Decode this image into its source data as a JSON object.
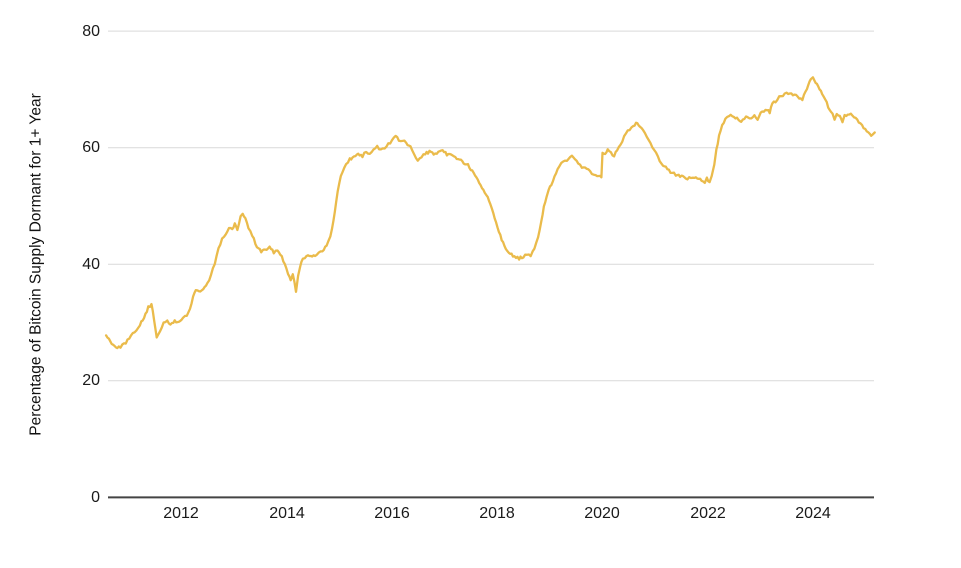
{
  "chart": {
    "y_axis_title": "Percentage of Bitcoin Supply Dormant for 1+ Year",
    "y_ticks": [
      "80",
      "60",
      "40",
      "20",
      "0"
    ],
    "x_ticks": [
      "2012",
      "2014",
      "2016",
      "2018",
      "2020",
      "2022",
      "2024"
    ]
  },
  "colors": {
    "line": "#EABB4B",
    "grid": "#D9D9D9",
    "zero_axis": "#444444",
    "tick_text": "#1a1a1a"
  },
  "chart_data": {
    "type": "line",
    "title": "",
    "xlabel": "",
    "ylabel": "Percentage of Bitcoin Supply Dormant for 1+ Year",
    "x_range": [
      2010.55,
      2025.2
    ],
    "ylim": [
      0,
      80
    ],
    "y_tick_values": [
      0,
      20,
      40,
      60,
      80
    ],
    "x_tick_years": [
      2012,
      2014,
      2016,
      2018,
      2020,
      2022,
      2024
    ],
    "grid": "horizontal-only",
    "legend": "none",
    "series": [
      {
        "name": "Percentage of Bitcoin Supply Dormant for 1+ Year",
        "points": [
          [
            2010.58,
            27.8
          ],
          [
            2010.66,
            26.8
          ],
          [
            2010.74,
            26.0
          ],
          [
            2010.82,
            25.7
          ],
          [
            2010.92,
            26.3
          ],
          [
            2011.02,
            27.2
          ],
          [
            2011.12,
            28.4
          ],
          [
            2011.22,
            29.6
          ],
          [
            2011.3,
            30.8
          ],
          [
            2011.38,
            32.6
          ],
          [
            2011.44,
            33.0
          ],
          [
            2011.49,
            30.5
          ],
          [
            2011.54,
            27.6
          ],
          [
            2011.6,
            28.6
          ],
          [
            2011.67,
            29.8
          ],
          [
            2011.74,
            30.2
          ],
          [
            2011.8,
            29.6
          ],
          [
            2011.88,
            30.3
          ],
          [
            2011.96,
            30.0
          ],
          [
            2012.04,
            30.8
          ],
          [
            2012.11,
            31.3
          ],
          [
            2012.17,
            32.3
          ],
          [
            2012.23,
            34.5
          ],
          [
            2012.28,
            35.6
          ],
          [
            2012.34,
            35.2
          ],
          [
            2012.42,
            35.7
          ],
          [
            2012.5,
            36.6
          ],
          [
            2012.57,
            38.1
          ],
          [
            2012.64,
            40.2
          ],
          [
            2012.71,
            42.8
          ],
          [
            2012.78,
            44.3
          ],
          [
            2012.85,
            45.1
          ],
          [
            2012.91,
            46.3
          ],
          [
            2012.97,
            45.9
          ],
          [
            2013.02,
            46.8
          ],
          [
            2013.07,
            46.0
          ],
          [
            2013.13,
            48.2
          ],
          [
            2013.17,
            48.6
          ],
          [
            2013.22,
            47.8
          ],
          [
            2013.28,
            46.3
          ],
          [
            2013.35,
            44.9
          ],
          [
            2013.44,
            43.0
          ],
          [
            2013.52,
            42.2
          ],
          [
            2013.6,
            42.5
          ],
          [
            2013.68,
            42.8
          ],
          [
            2013.76,
            42.1
          ],
          [
            2013.83,
            42.4
          ],
          [
            2013.91,
            41.5
          ],
          [
            2013.97,
            39.9
          ],
          [
            2014.03,
            38.3
          ],
          [
            2014.08,
            37.4
          ],
          [
            2014.12,
            38.3
          ],
          [
            2014.15,
            37.2
          ],
          [
            2014.18,
            35.4
          ],
          [
            2014.22,
            38.0
          ],
          [
            2014.26,
            39.8
          ],
          [
            2014.31,
            41.0
          ],
          [
            2014.38,
            41.4
          ],
          [
            2014.46,
            41.6
          ],
          [
            2014.54,
            41.3
          ],
          [
            2014.61,
            41.8
          ],
          [
            2014.68,
            42.3
          ],
          [
            2014.76,
            43.2
          ],
          [
            2014.83,
            44.6
          ],
          [
            2014.89,
            47.5
          ],
          [
            2014.94,
            50.8
          ],
          [
            2015.0,
            54.0
          ],
          [
            2015.06,
            55.9
          ],
          [
            2015.13,
            57.1
          ],
          [
            2015.2,
            58.0
          ],
          [
            2015.28,
            58.4
          ],
          [
            2015.36,
            59.0
          ],
          [
            2015.44,
            58.6
          ],
          [
            2015.51,
            59.3
          ],
          [
            2015.58,
            58.8
          ],
          [
            2015.65,
            59.8
          ],
          [
            2015.72,
            60.1
          ],
          [
            2015.79,
            59.7
          ],
          [
            2015.86,
            60.0
          ],
          [
            2015.93,
            60.6
          ],
          [
            2016.0,
            61.2
          ],
          [
            2016.07,
            61.9
          ],
          [
            2016.13,
            61.3
          ],
          [
            2016.2,
            61.2
          ],
          [
            2016.27,
            60.8
          ],
          [
            2016.35,
            60.1
          ],
          [
            2016.42,
            58.7
          ],
          [
            2016.49,
            57.8
          ],
          [
            2016.56,
            58.4
          ],
          [
            2016.63,
            59.0
          ],
          [
            2016.71,
            59.3
          ],
          [
            2016.79,
            58.9
          ],
          [
            2016.88,
            59.1
          ],
          [
            2016.96,
            59.4
          ],
          [
            2017.04,
            58.9
          ],
          [
            2017.12,
            58.7
          ],
          [
            2017.2,
            58.4
          ],
          [
            2017.28,
            58.0
          ],
          [
            2017.36,
            57.4
          ],
          [
            2017.44,
            57.0
          ],
          [
            2017.52,
            55.9
          ],
          [
            2017.6,
            54.8
          ],
          [
            2017.68,
            53.6
          ],
          [
            2017.76,
            52.4
          ],
          [
            2017.84,
            50.9
          ],
          [
            2017.92,
            48.9
          ],
          [
            2018.0,
            46.4
          ],
          [
            2018.08,
            44.3
          ],
          [
            2018.16,
            42.8
          ],
          [
            2018.24,
            41.8
          ],
          [
            2018.32,
            41.2
          ],
          [
            2018.41,
            41.0
          ],
          [
            2018.49,
            41.3
          ],
          [
            2018.56,
            41.6
          ],
          [
            2018.63,
            41.4
          ],
          [
            2018.7,
            42.6
          ],
          [
            2018.77,
            44.6
          ],
          [
            2018.83,
            47.5
          ],
          [
            2018.88,
            49.9
          ],
          [
            2018.93,
            51.6
          ],
          [
            2018.97,
            52.8
          ],
          [
            2019.02,
            53.6
          ],
          [
            2019.08,
            54.9
          ],
          [
            2019.14,
            56.1
          ],
          [
            2019.21,
            57.3
          ],
          [
            2019.28,
            57.8
          ],
          [
            2019.35,
            58.1
          ],
          [
            2019.41,
            58.8
          ],
          [
            2019.47,
            58.2
          ],
          [
            2019.53,
            57.4
          ],
          [
            2019.6,
            56.4
          ],
          [
            2019.66,
            56.8
          ],
          [
            2019.72,
            56.1
          ],
          [
            2019.79,
            55.6
          ],
          [
            2019.86,
            55.4
          ],
          [
            2019.92,
            55.1
          ],
          [
            2019.97,
            54.8
          ],
          [
            2019.99,
            59.2
          ],
          [
            2020.04,
            58.9
          ],
          [
            2020.09,
            59.6
          ],
          [
            2020.15,
            59.0
          ],
          [
            2020.21,
            58.7
          ],
          [
            2020.27,
            59.5
          ],
          [
            2020.33,
            60.6
          ],
          [
            2020.4,
            61.8
          ],
          [
            2020.47,
            62.8
          ],
          [
            2020.54,
            63.4
          ],
          [
            2020.6,
            64.0
          ],
          [
            2020.65,
            64.3
          ],
          [
            2020.7,
            63.8
          ],
          [
            2020.76,
            63.1
          ],
          [
            2020.83,
            62.0
          ],
          [
            2020.9,
            60.8
          ],
          [
            2020.97,
            59.6
          ],
          [
            2021.04,
            58.4
          ],
          [
            2021.11,
            57.4
          ],
          [
            2021.19,
            56.6
          ],
          [
            2021.28,
            55.9
          ],
          [
            2021.38,
            55.4
          ],
          [
            2021.49,
            55.0
          ],
          [
            2021.6,
            54.7
          ],
          [
            2021.7,
            54.9
          ],
          [
            2021.79,
            54.7
          ],
          [
            2021.87,
            54.4
          ],
          [
            2021.93,
            53.8
          ],
          [
            2021.97,
            54.7
          ],
          [
            2022.02,
            54.1
          ],
          [
            2022.06,
            55.3
          ],
          [
            2022.11,
            57.3
          ],
          [
            2022.15,
            59.6
          ],
          [
            2022.2,
            62.0
          ],
          [
            2022.26,
            63.8
          ],
          [
            2022.32,
            64.8
          ],
          [
            2022.39,
            65.4
          ],
          [
            2022.45,
            65.6
          ],
          [
            2022.51,
            65.1
          ],
          [
            2022.57,
            64.8
          ],
          [
            2022.62,
            64.3
          ],
          [
            2022.68,
            65.0
          ],
          [
            2022.74,
            65.3
          ],
          [
            2022.81,
            65.1
          ],
          [
            2022.87,
            65.4
          ],
          [
            2022.93,
            64.6
          ],
          [
            2022.99,
            65.8
          ],
          [
            2023.05,
            66.2
          ],
          [
            2023.11,
            66.4
          ],
          [
            2023.16,
            66.1
          ],
          [
            2023.21,
            67.5
          ],
          [
            2023.27,
            68.0
          ],
          [
            2023.34,
            68.6
          ],
          [
            2023.41,
            69.0
          ],
          [
            2023.48,
            69.3
          ],
          [
            2023.54,
            69.5
          ],
          [
            2023.6,
            69.1
          ],
          [
            2023.66,
            69.2
          ],
          [
            2023.72,
            68.5
          ],
          [
            2023.78,
            68.3
          ],
          [
            2023.84,
            69.6
          ],
          [
            2023.89,
            70.9
          ],
          [
            2023.94,
            71.6
          ],
          [
            2023.98,
            72.0
          ],
          [
            2024.03,
            71.2
          ],
          [
            2024.08,
            70.6
          ],
          [
            2024.13,
            69.8
          ],
          [
            2024.18,
            68.9
          ],
          [
            2024.24,
            67.7
          ],
          [
            2024.3,
            66.4
          ],
          [
            2024.35,
            65.7
          ],
          [
            2024.39,
            64.7
          ],
          [
            2024.43,
            65.9
          ],
          [
            2024.49,
            65.5
          ],
          [
            2024.54,
            64.5
          ],
          [
            2024.58,
            65.5
          ],
          [
            2024.64,
            65.7
          ],
          [
            2024.7,
            65.6
          ],
          [
            2024.76,
            65.2
          ],
          [
            2024.82,
            64.9
          ],
          [
            2024.88,
            64.1
          ],
          [
            2024.94,
            63.3
          ],
          [
            2025.0,
            62.7
          ],
          [
            2025.06,
            62.2
          ],
          [
            2025.11,
            62.1
          ],
          [
            2025.15,
            62.6
          ]
        ]
      }
    ]
  }
}
